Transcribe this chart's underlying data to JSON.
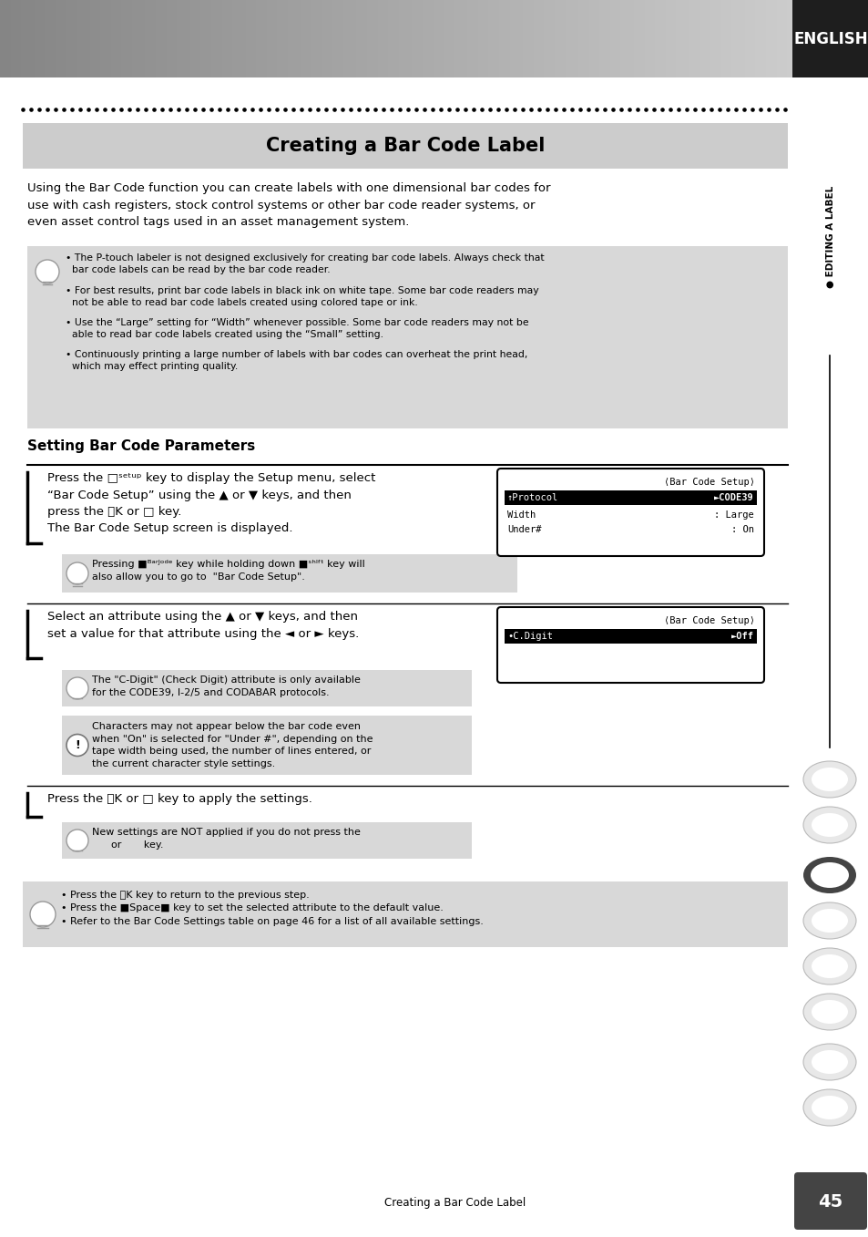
{
  "page_bg": "#ffffff",
  "header_text": "ENGLISH",
  "section_title": "Creating a Bar Code Label",
  "section_title_bg": "#cccccc",
  "intro_text": "Using the Bar Code function you can create labels with one dimensional bar codes for\nuse with cash registers, stock control systems or other bar code reader systems, or\neven asset control tags used in an asset management system.",
  "note_bg": "#d8d8d8",
  "note_bullets": [
    "The P-touch labeler is not designed exclusively for creating bar code labels. Always check that bar code labels can be read by the bar code reader.",
    "For best results, print bar code labels in black ink on white tape. Some bar code readers may not be able to read bar code labels created using colored tape or ink.",
    "Use the “Large” setting for “Width” whenever possible. Some bar code readers may not be able to read bar code labels created using the “Small” setting.",
    "Continuously printing a large number of labels with bar codes can overheat the print head, which may effect printing quality."
  ],
  "subsection_title": "Setting Bar Code Parameters",
  "step2_note1": "The \"C-Digit\" (Check Digit) attribute is only available\nfor the CODE39, I-2/5 and CODABAR protocols.",
  "step2_note2": "Characters may not appear below the bar code even\nwhen \"On\" is selected for \"Under #\", depending on the\ntape width being used, the number of lines entered, or\nthe current character style settings.",
  "page_number": "45",
  "page_label": "Creating a Bar Code Label",
  "sidebar_text": "EDITING A LABEL"
}
